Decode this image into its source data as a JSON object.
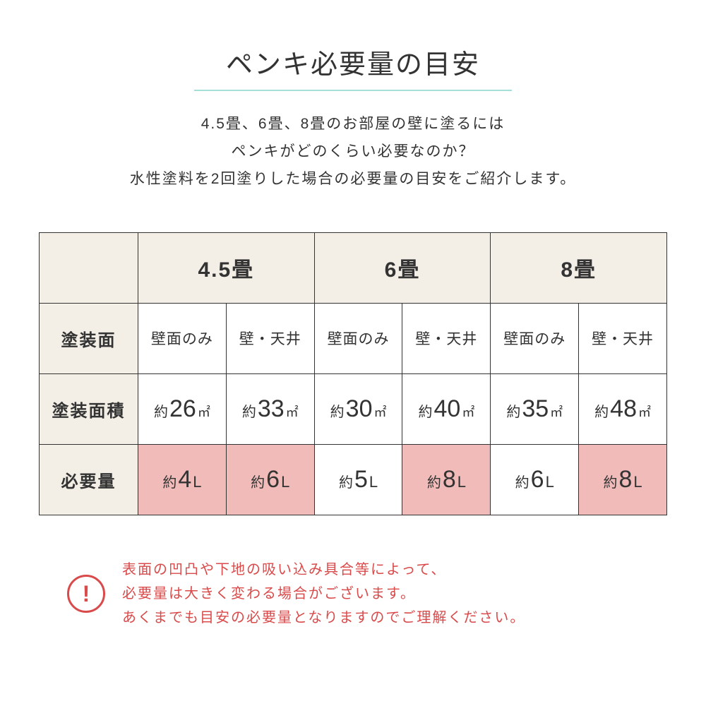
{
  "title": "ペンキ必要量の目安",
  "descLines": [
    "4.5畳、6畳、8畳のお部屋の壁に塗るには",
    "ペンキがどのくらい必要なのか？",
    "水性塗料を2回塗りした場合の必要量の目安をご紹介します。"
  ],
  "colHeaders": [
    "4.5畳",
    "6畳",
    "8畳"
  ],
  "rowHeaders": {
    "surface": "塗装面",
    "area": "塗装面積",
    "amount": "必要量"
  },
  "sub": {
    "wallOnly": "壁面のみ",
    "wallCeiling": "壁・天井"
  },
  "prefix": "約",
  "areaUnit": "㎡",
  "litreUnit": "L",
  "areas": [
    "26",
    "33",
    "30",
    "40",
    "35",
    "48"
  ],
  "amounts": [
    "4",
    "6",
    "5",
    "8",
    "6",
    "8"
  ],
  "highlight": [
    true,
    true,
    false,
    true,
    false,
    true
  ],
  "noticeLines": [
    "表面の凹凸や下地の吸い込み具合等によって、",
    "必要量は大きく変わる場合がございます。",
    "あくまでも目安の必要量となりますのでご理解ください。"
  ],
  "bang": "!",
  "colors": {
    "accent": "#a4e0d8",
    "headerBg": "#f3eee6",
    "highlight": "#f0bbb9",
    "warn": "#d94a4a",
    "border": "#333333",
    "text": "#333333"
  }
}
